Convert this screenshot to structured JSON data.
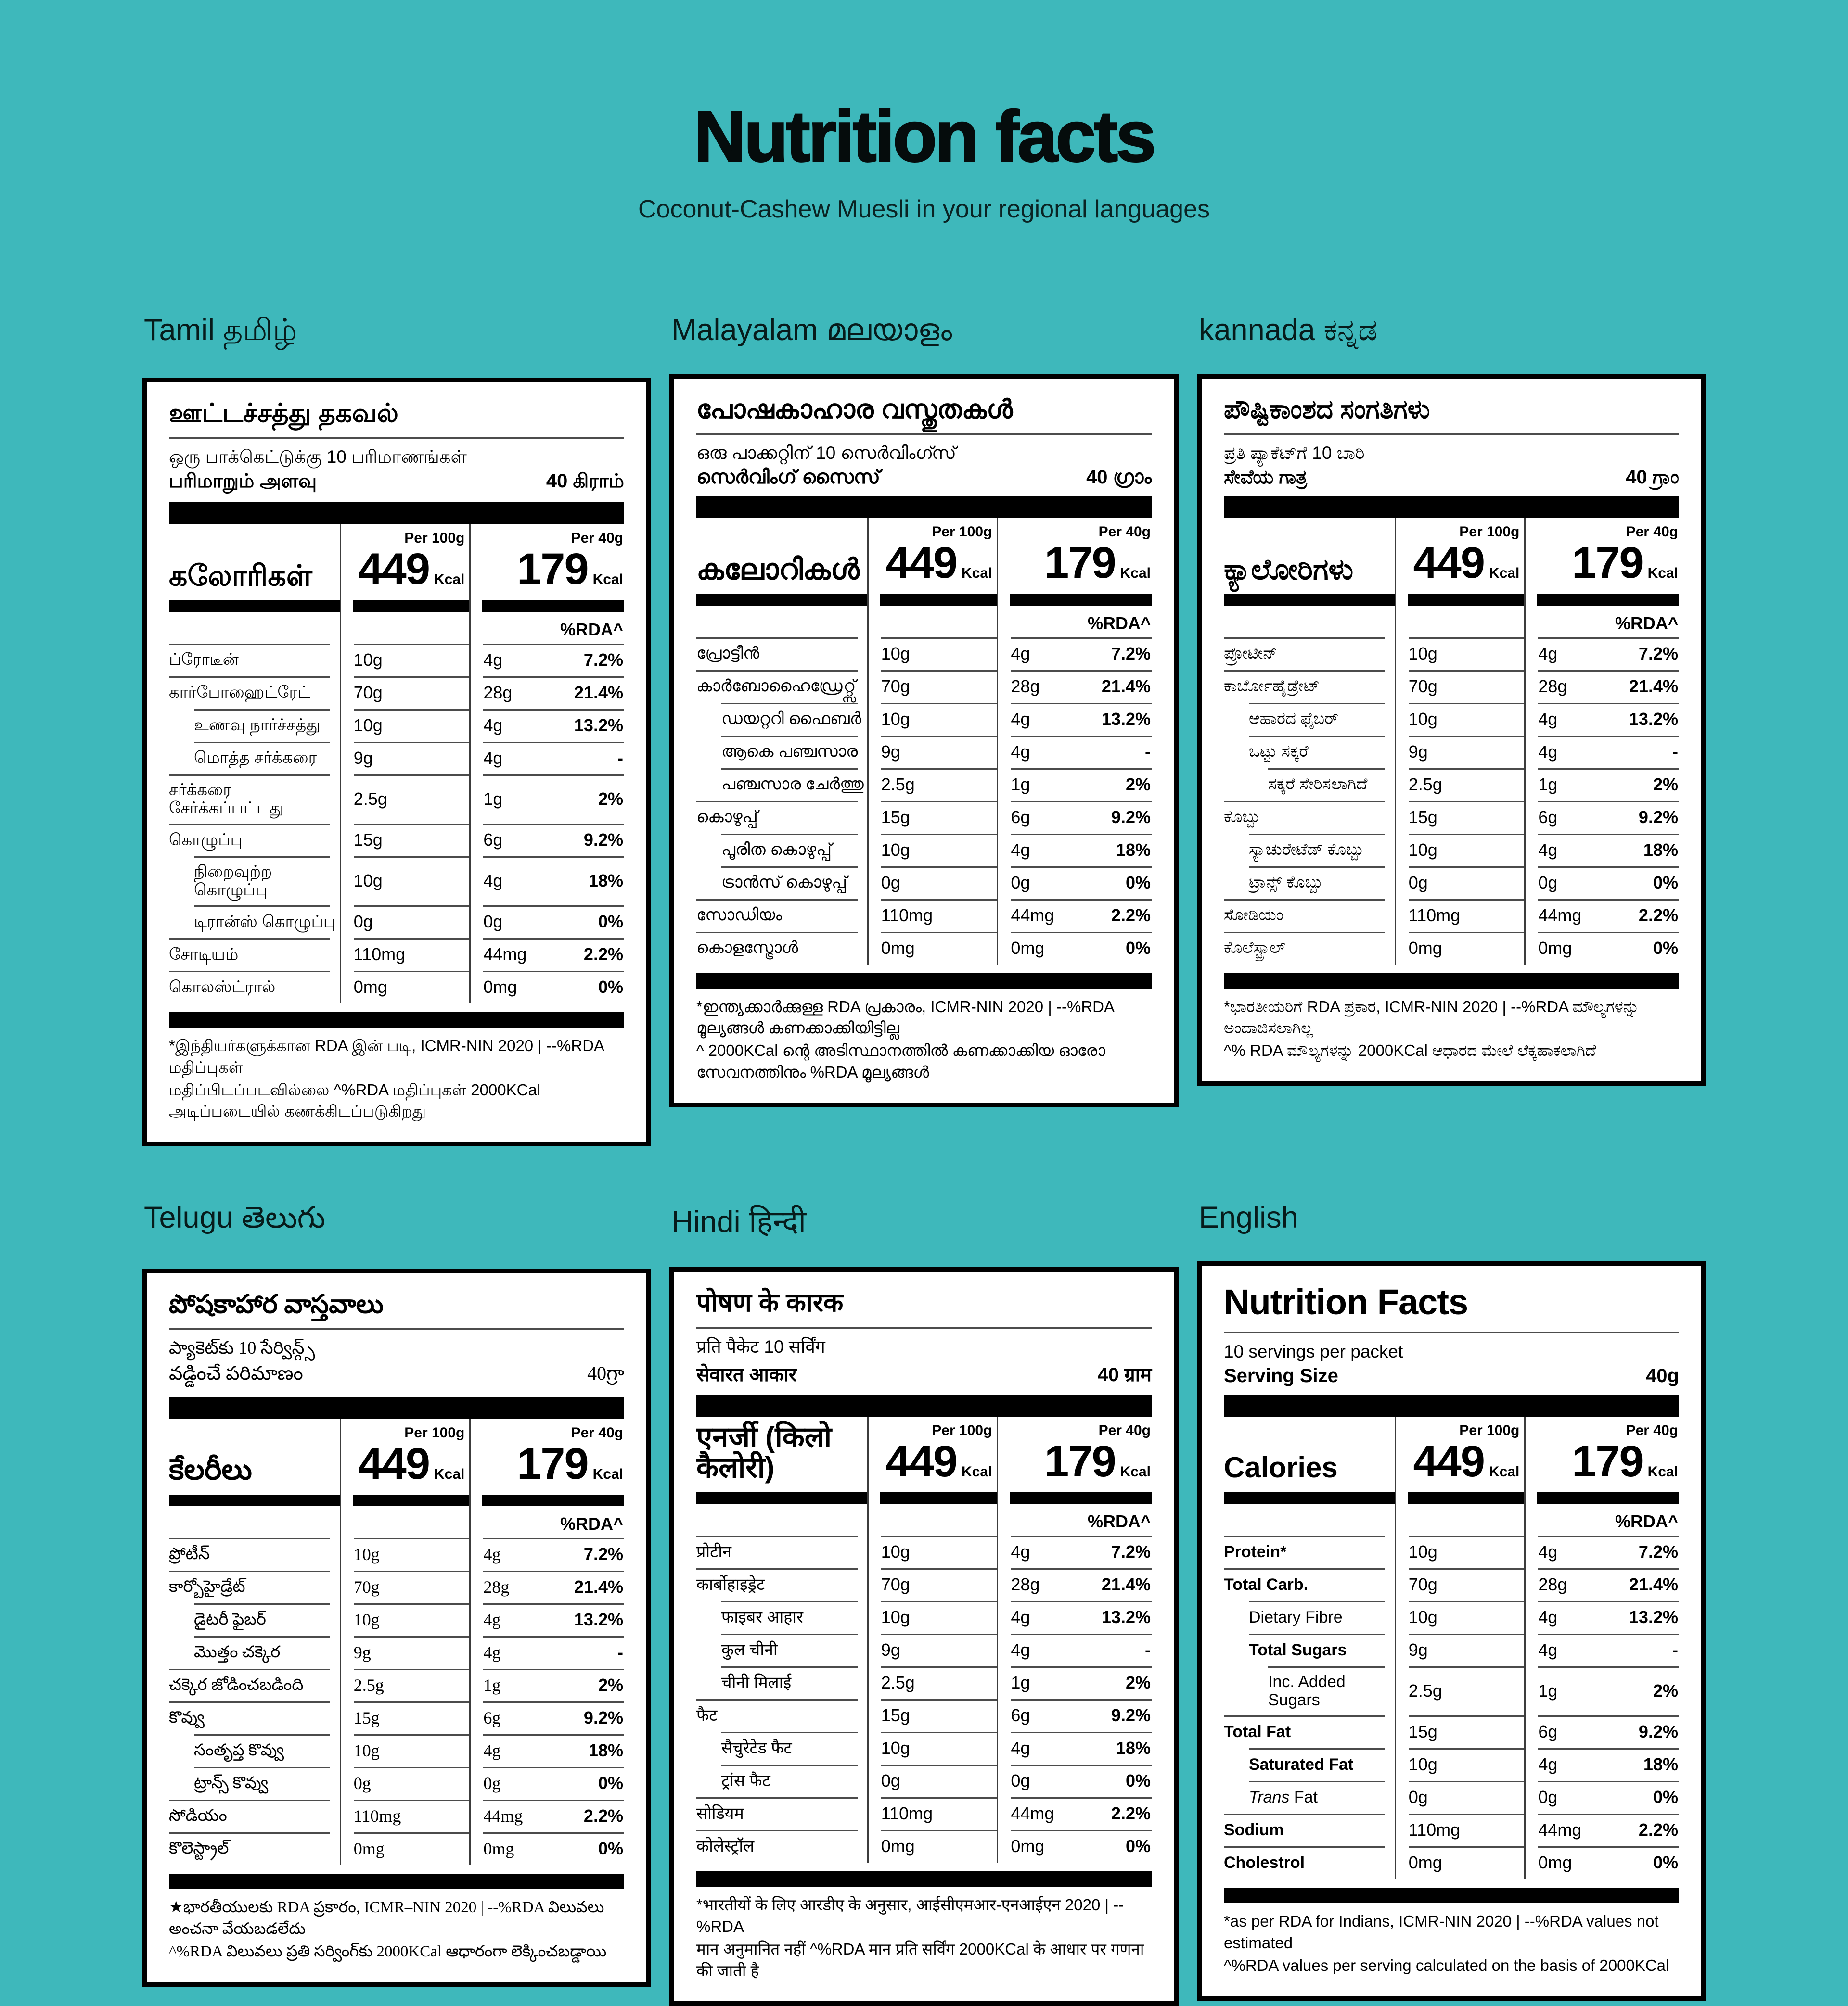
{
  "page": {
    "title": "Nutrition facts",
    "subtitle": "Coconut-Cashew Muesli in your regional languages",
    "bg_color": "#3EB8BB",
    "card_bg_color": "#FFFFFF",
    "text_color": "#000000"
  },
  "shared": {
    "per100_label": "Per 100g",
    "per40_label": "Per 40g",
    "calories_per100": "449",
    "calories_per40": "179",
    "kcal_unit": "Kcal",
    "rda_header": "%RDA^",
    "row_values": [
      {
        "per100": "10g",
        "per40": "4g",
        "rda": "7.2%"
      },
      {
        "per100": "70g",
        "per40": "28g",
        "rda": "21.4%"
      },
      {
        "per100": "10g",
        "per40": "4g",
        "rda": "13.2%"
      },
      {
        "per100": "9g",
        "per40": "4g",
        "rda": "-"
      },
      {
        "per100": "2.5g",
        "per40": "1g",
        "rda": "2%"
      },
      {
        "per100": "15g",
        "per40": "6g",
        "rda": "9.2%"
      },
      {
        "per100": "10g",
        "per40": "4g",
        "rda": "18%"
      },
      {
        "per100": "0g",
        "per40": "0g",
        "rda": "0%"
      },
      {
        "per100": "110mg",
        "per40": "44mg",
        "rda": "2.2%"
      },
      {
        "per100": "0mg",
        "per40": "0mg",
        "rda": "0%"
      }
    ]
  },
  "cards": [
    {
      "id": "tamil",
      "heading": "Tamil தமிழ்",
      "title": "ஊட்டச்சத்து தகவல்",
      "servings_line": "ஒரு பாக்கெட்டுக்கு 10 பரிமாணங்கள்",
      "serving_size_label": "பரிமாறும் அளவு",
      "serving_size_value": "40 கிராம்",
      "calories_label": "கலோரிகள்",
      "footnote_line1": "*இந்தியர்களுக்கான RDA இன் படி, ICMR-NIN 2020 | --%RDA மதிப்புகள்",
      "footnote_line2": "மதிப்பிடப்படவில்லை ^%RDA மதிப்புகள் 2000KCal அடிப்படையில் கணக்கிடப்படுகிறது",
      "row_labels": [
        {
          "text": "ப்ரோடீன்",
          "indent": 0
        },
        {
          "text": "கார்போஹைட்ரேட்",
          "indent": 0
        },
        {
          "text": "உணவு நார்ச்சத்து",
          "indent": 1
        },
        {
          "text": "மொத்த சர்க்கரை",
          "indent": 1
        },
        {
          "text": "சர்க்கரை சேர்க்கப்பட்டது",
          "indent": 0
        },
        {
          "text": "கொழுப்பு",
          "indent": 0
        },
        {
          "text": "நிறைவுற்ற கொழுப்பு",
          "indent": 1
        },
        {
          "text": "டிரான்ஸ் கொழுப்பு",
          "indent": 1
        },
        {
          "text": "சோடியம்",
          "indent": 0
        },
        {
          "text": "கொலஸ்ட்ரால்",
          "indent": 0
        }
      ]
    },
    {
      "id": "malayalam",
      "heading": "Malayalam മലയാളം",
      "title": "പോഷകാഹാര വസ്തുതകൾ",
      "servings_line": "ഒരു പാക്കറ്റിന് 10 സെർവിംഗ്സ്",
      "serving_size_label": "സെർവിംഗ് സൈസ്",
      "serving_size_value": "40 ഗ്രാം",
      "calories_label": "കലോറികൾ",
      "footnote_line1": "*ഇന്ത്യക്കാർക്കുള്ള RDA പ്രകാരം, ICMR-NIN 2020 | --%RDA മൂല്യങ്ങൾ കണക്കാക്കിയിട്ടില്ല",
      "footnote_line2": "^ 2000KCal ന്റെ അടിസ്ഥാനത്തിൽ കണക്കാക്കിയ ഓരോ സേവനത്തിനും %RDA മൂല്യങ്ങൾ",
      "row_labels": [
        {
          "text": "പ്രോട്ടീൻ",
          "indent": 0
        },
        {
          "text": "കാർബോഹൈഡ്രേറ്റ്സ്",
          "indent": 0
        },
        {
          "text": "ഡയറ്ററി ഫൈബർ",
          "indent": 1
        },
        {
          "text": "ആകെ പഞ്ചസാര",
          "indent": 1
        },
        {
          "text": "പഞ്ചസാര ചേർത്തു",
          "indent": 1
        },
        {
          "text": "കൊഴുപ്പ്",
          "indent": 0
        },
        {
          "text": "പൂരിത കൊഴുപ്പ്",
          "indent": 1
        },
        {
          "text": "ട്രാൻസ് കൊഴുപ്പ്",
          "indent": 1
        },
        {
          "text": "സോഡിയം",
          "indent": 0
        },
        {
          "text": "കൊളസ്ട്രോൾ",
          "indent": 0
        }
      ]
    },
    {
      "id": "kannada",
      "heading": "kannada ಕನ್ನಡ",
      "title": "ಪೌಷ್ಟಿಕಾಂಶದ ಸಂಗತಿಗಳು",
      "servings_line": "ಪ್ರತಿ ಪ್ಯಾಕೆಟ್‌ಗೆ 10 ಬಾರಿ",
      "serving_size_label": "ಸೇವೆಯ ಗಾತ್ರ",
      "serving_size_value": "40 ಗ್ರಾಂ",
      "calories_label": "ಕ್ಯಾಲೋರಿಗಳು",
      "footnote_line1": "*ಭಾರತೀಯರಿಗೆ RDA ಪ್ರಕಾರ, ICMR-NIN 2020 | --%RDA ಮೌಲ್ಯಗಳನ್ನು ಅಂದಾಜಿಸಲಾಗಿಲ್ಲ",
      "footnote_line2": "^% RDA ಮೌಲ್ಯಗಳನ್ನು 2000KCal ಆಧಾರದ ಮೇಲೆ ಲೆಕ್ಕಹಾಕಲಾಗಿದೆ",
      "row_labels": [
        {
          "text": "ಪ್ರೋಟೀನ್",
          "indent": 0
        },
        {
          "text": "ಕಾರ್ಬೋಹೈಡ್ರೇಟ್",
          "indent": 0
        },
        {
          "text": "ಆಹಾರದ ಫೈಬರ್",
          "indent": 1
        },
        {
          "text": "ಒಟ್ಟು ಸಕ್ಕರೆ",
          "indent": 1
        },
        {
          "text": "ಸಕ್ಕರೆ ಸೇರಿಸಲಾಗಿದೆ",
          "indent": 2
        },
        {
          "text": "ಕೊಬ್ಬು",
          "indent": 0
        },
        {
          "text": "ಸ್ಯಾಚುರೇಟೆಡ್ ಕೊಬ್ಬು",
          "indent": 1
        },
        {
          "text": "ಟ್ರಾನ್ಸ್ ಕೊಬ್ಬು",
          "indent": 1
        },
        {
          "text": "ಸೋಡಿಯಂ",
          "indent": 0
        },
        {
          "text": "ಕೊಲೆಸ್ಟ್ರಾಲ್",
          "indent": 0
        }
      ]
    },
    {
      "id": "telugu",
      "heading": "Telugu తెలుగు",
      "serif": true,
      "title": "పోషకాహార వాస్తవాలు",
      "servings_line": "ప్యాకెట్‌కు 10 సేర్విన్గ్స్",
      "serving_size_label": "వడ్డించే పరిమాణం",
      "serving_size_value": "40గ్రా",
      "calories_label": "కేలరీలు",
      "footnote_line1": "★భారతీయులకు RDA ప్రకారం, ICMR–NIN 2020 | --%RDA విలువలు అంచనా వేయబడలేదు",
      "footnote_line2": "^%RDA విలువలు ప్రతి సర్వింగ్‌కు 2000KCal ఆధారంగా లెక్కించబడ్డాయి",
      "row_labels": [
        {
          "text": "ప్రోటీన్",
          "indent": 0
        },
        {
          "text": "కార్బోహైడ్రేట్",
          "indent": 0
        },
        {
          "text": "డైటరీ ఫైబర్",
          "indent": 1
        },
        {
          "text": "మొత్తం చక్కెర",
          "indent": 1
        },
        {
          "text": "చక్కెర జోడించబడింది",
          "indent": 0
        },
        {
          "text": "కొవ్వు",
          "indent": 0
        },
        {
          "text": "సంతృప్త కొవ్వు",
          "indent": 1
        },
        {
          "text": "ట్రాన్స్ కొవ్వు",
          "indent": 1
        },
        {
          "text": "సోడియం",
          "indent": 0
        },
        {
          "text": "కొలెస్ట్రాల్",
          "indent": 0
        }
      ]
    },
    {
      "id": "hindi",
      "heading": "Hindi हिन्दी",
      "title": "पोषण के कारक",
      "servings_line": "प्रति पैकेट 10 सर्विंग",
      "serving_size_label": "सेवारत आकार",
      "serving_size_value": "40 ग्राम",
      "calories_label": "एनर्जी (किलो कैलोरी)",
      "footnote_line1": "*भारतीयों के लिए आरडीए के अनुसार, आईसीएमआर-एनआईएन 2020 | --%RDA",
      "footnote_line2": "मान अनुमानित नहीं ^%RDA मान प्रति सर्विंग 2000KCal के आधार पर गणना की जाती है",
      "row_labels": [
        {
          "text": "प्रोटीन",
          "indent": 0
        },
        {
          "text": "कार्बोहाइड्रेट",
          "indent": 0
        },
        {
          "text": "फाइबर आहार",
          "indent": 1
        },
        {
          "text": "कुल चीनी",
          "indent": 1
        },
        {
          "text": "चीनी मिलाई",
          "indent": 1
        },
        {
          "text": "फैट",
          "indent": 0
        },
        {
          "text": "सैचुरेटेड फैट",
          "indent": 1
        },
        {
          "text": "ट्रांस फैट",
          "indent": 1
        },
        {
          "text": "सोडियम",
          "indent": 0
        },
        {
          "text": "कोलेस्ट्रॉल",
          "indent": 0
        }
      ]
    },
    {
      "id": "english",
      "heading": "English",
      "title_xl": true,
      "title": "Nutrition Facts",
      "servings_line": "10 servings per packet",
      "serving_size_label": "Serving Size",
      "serving_size_value": "40g",
      "calories_label": "Calories",
      "footnote_line1": "*as per RDA for Indians, ICMR-NIN 2020 | --%RDA values not estimated",
      "footnote_line2": "^%RDA values per serving calculated on the basis of 2000KCal",
      "row_labels": [
        {
          "text": "Protein*",
          "indent": 0,
          "bold": true
        },
        {
          "text": "Total Carb.",
          "indent": 0,
          "bold": true
        },
        {
          "text": "Dietary Fibre",
          "indent": 1
        },
        {
          "text": "Total Sugars",
          "indent": 1,
          "bold": true
        },
        {
          "text": "Inc. Added Sugars",
          "indent": 2
        },
        {
          "text": "Total Fat",
          "indent": 0,
          "bold": true
        },
        {
          "text": "Saturated Fat",
          "indent": 1,
          "bold": true
        },
        {
          "text": "Trans Fat",
          "indent": 1,
          "lead_italic": true
        },
        {
          "text": "Sodium",
          "indent": 0,
          "bold": true
        },
        {
          "text": "Cholestrol",
          "indent": 0,
          "bold": true
        }
      ]
    }
  ]
}
